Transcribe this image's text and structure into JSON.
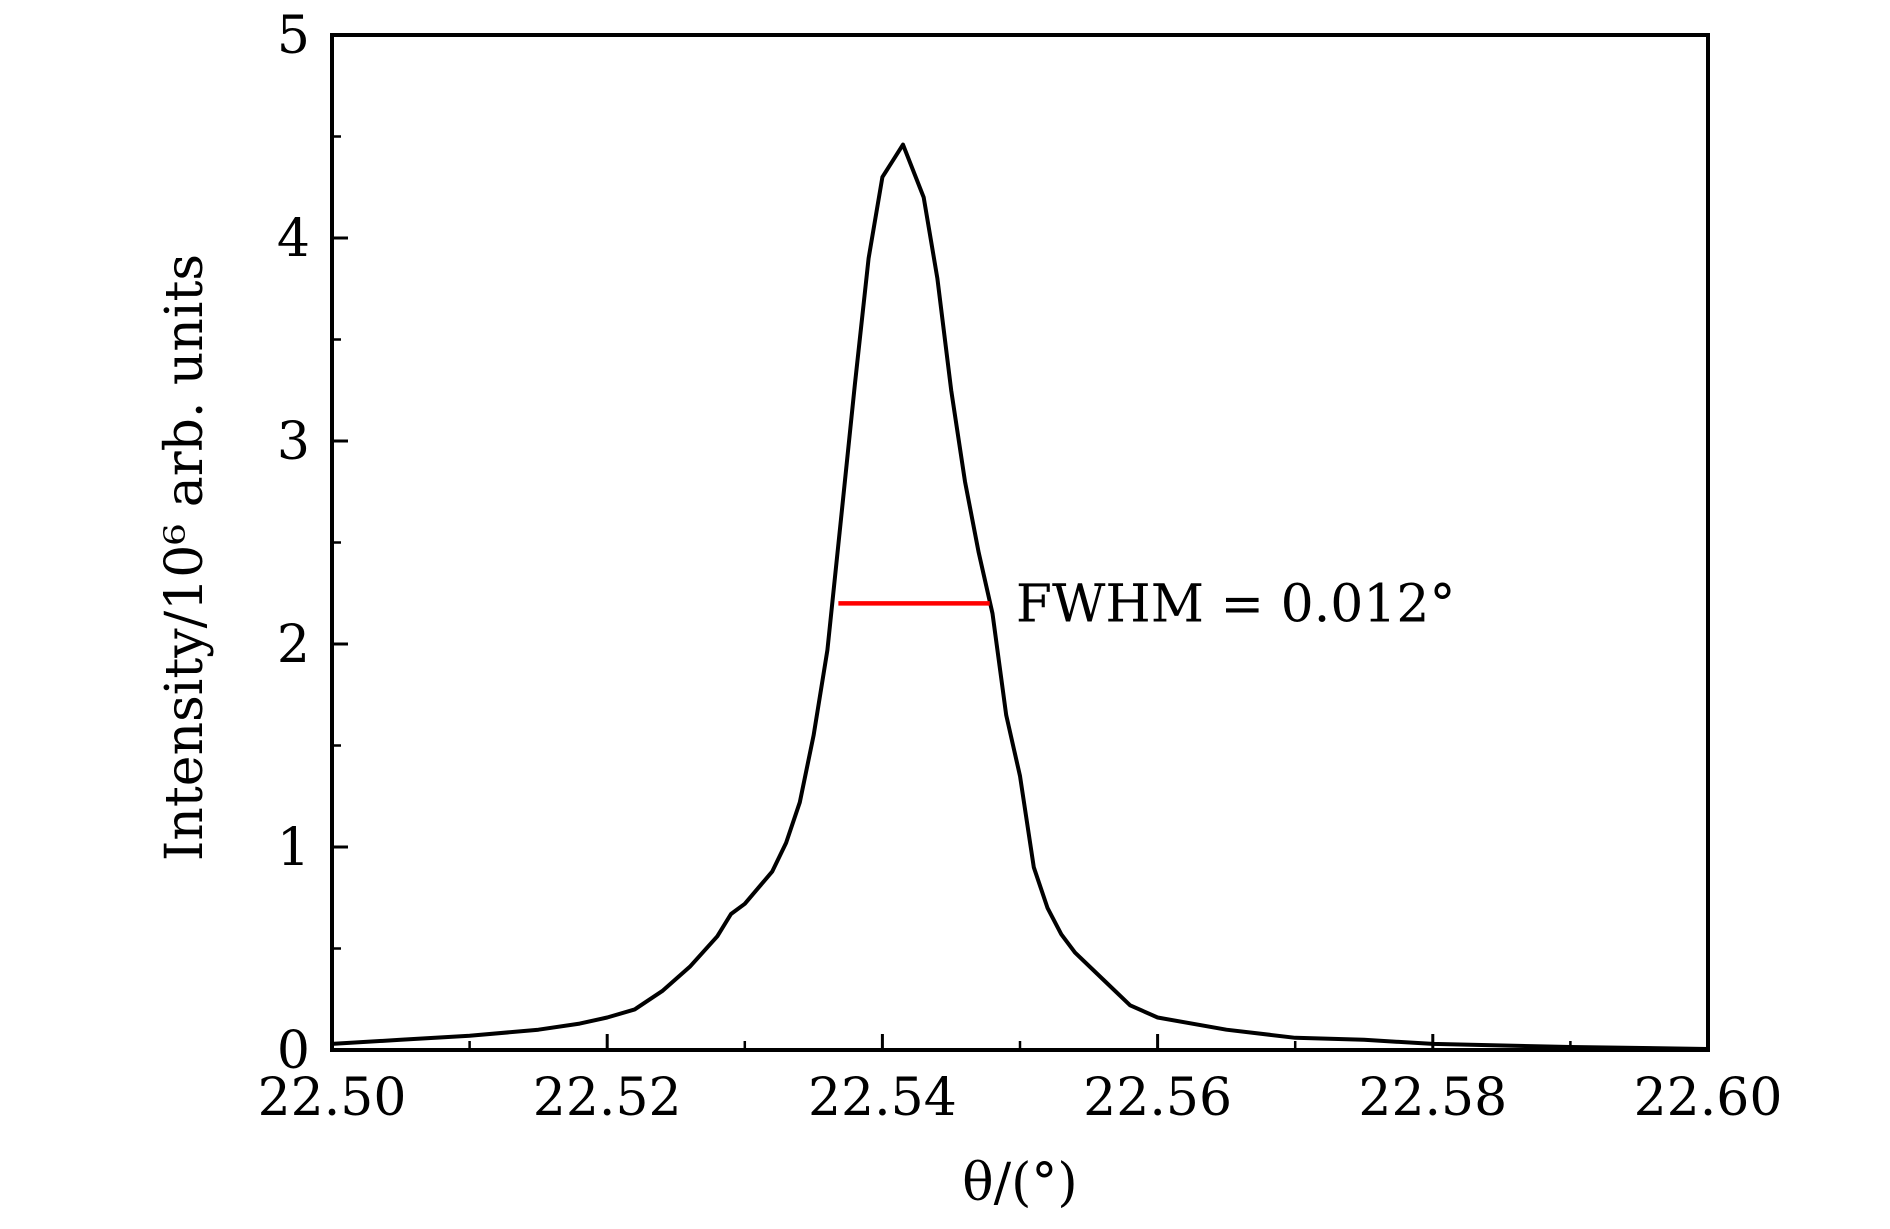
{
  "chart_data": {
    "type": "line",
    "xlabel": "θ/(°)",
    "ylabel": "Intensity/10⁶ arb. units",
    "xlim": [
      22.5,
      22.6
    ],
    "ylim": [
      0,
      5
    ],
    "xticks": [
      22.5,
      22.52,
      22.54,
      22.56,
      22.58,
      22.6
    ],
    "xtick_labels": [
      "22.50",
      "22.52",
      "22.54",
      "22.56",
      "22.58",
      "22.60"
    ],
    "yticks": [
      0,
      1,
      2,
      3,
      4,
      5
    ],
    "ytick_labels": [
      "0",
      "1",
      "2",
      "3",
      "4",
      "5"
    ],
    "grid": false,
    "series": [
      {
        "color": "#000000",
        "x": [
          22.5,
          22.505,
          22.51,
          22.515,
          22.518,
          22.52,
          22.522,
          22.524,
          22.526,
          22.528,
          22.529,
          22.53,
          22.532,
          22.533,
          22.534,
          22.535,
          22.536,
          22.537,
          22.538,
          22.539,
          22.54,
          22.5415,
          22.543,
          22.544,
          22.545,
          22.546,
          22.547,
          22.548,
          22.549,
          22.55,
          22.551,
          22.552,
          22.553,
          22.554,
          22.556,
          22.558,
          22.56,
          22.565,
          22.57,
          22.575,
          22.58,
          22.59,
          22.6
        ],
        "y": [
          0.03,
          0.05,
          0.07,
          0.1,
          0.13,
          0.16,
          0.2,
          0.29,
          0.41,
          0.56,
          0.67,
          0.72,
          0.88,
          1.02,
          1.22,
          1.55,
          1.97,
          2.62,
          3.28,
          3.9,
          4.3,
          4.46,
          4.2,
          3.8,
          3.25,
          2.8,
          2.45,
          2.15,
          1.65,
          1.35,
          0.9,
          0.7,
          0.57,
          0.48,
          0.35,
          0.22,
          0.16,
          0.1,
          0.06,
          0.05,
          0.03,
          0.015,
          0.005
        ]
      }
    ],
    "fwhm_marker": {
      "x_start": 22.5368,
      "x_end": 22.5478,
      "y": 2.2,
      "color": "#ff0000"
    },
    "annotation": {
      "text": "FWHM = 0.012°",
      "x": 22.5497,
      "y": 2.2
    }
  }
}
